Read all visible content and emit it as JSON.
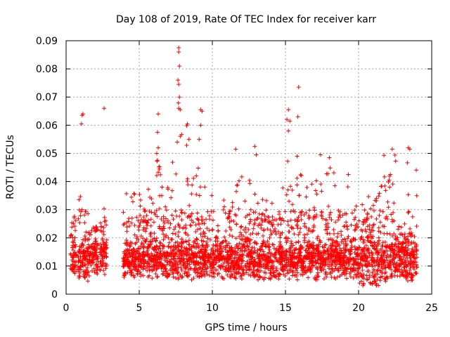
{
  "chart_data": {
    "type": "scatter",
    "title": "Day 108 of 2019, Rate Of TEC Index for receiver karr",
    "xlabel": "GPS time / hours",
    "ylabel": "ROTI / TECUs",
    "xlim": [
      0,
      25
    ],
    "ylim": [
      0,
      0.09
    ],
    "xticks": [
      "0",
      "5",
      "10",
      "15",
      "20",
      "25"
    ],
    "yticks": [
      "0",
      "0.01",
      "0.02",
      "0.03",
      "0.04",
      "0.05",
      "0.06",
      "0.07",
      "0.08",
      "0.09"
    ],
    "grid": true,
    "marker": "+",
    "color": "#ff0000",
    "series": [
      {
        "name": "ROTI",
        "segments": [
          {
            "x": [
              0.3,
              0.7
            ],
            "ylo": 0.007,
            "yhi": 0.028
          },
          {
            "x": [
              0.8,
              1.6
            ],
            "ylo": 0.004,
            "yhi": 0.041
          },
          {
            "x": [
              1.6,
              2.2
            ],
            "ylo": 0.007,
            "yhi": 0.025
          },
          {
            "x": [
              2.3,
              2.8
            ],
            "ylo": 0.006,
            "yhi": 0.033
          },
          {
            "x": [
              3.9,
              5.0
            ],
            "ylo": 0.006,
            "yhi": 0.038
          },
          {
            "x": [
              5.0,
              6.0
            ],
            "ylo": 0.005,
            "yhi": 0.04
          },
          {
            "x": [
              6.0,
              7.5
            ],
            "ylo": 0.006,
            "yhi": 0.052
          },
          {
            "x": [
              7.5,
              8.5
            ],
            "ylo": 0.005,
            "yhi": 0.07
          },
          {
            "x": [
              8.5,
              10.0
            ],
            "ylo": 0.005,
            "yhi": 0.045
          },
          {
            "x": [
              10.0,
              11.5
            ],
            "ylo": 0.005,
            "yhi": 0.04
          },
          {
            "x": [
              11.5,
              13.0
            ],
            "ylo": 0.005,
            "yhi": 0.044
          },
          {
            "x": [
              13.0,
              14.8
            ],
            "ylo": 0.005,
            "yhi": 0.036
          },
          {
            "x": [
              14.8,
              16.5
            ],
            "ylo": 0.005,
            "yhi": 0.048
          },
          {
            "x": [
              16.5,
              18.5
            ],
            "ylo": 0.005,
            "yhi": 0.045
          },
          {
            "x": [
              18.5,
              20.0
            ],
            "ylo": 0.005,
            "yhi": 0.04
          },
          {
            "x": [
              20.0,
              21.5
            ],
            "ylo": 0.003,
            "yhi": 0.036
          },
          {
            "x": [
              21.5,
              22.6
            ],
            "ylo": 0.004,
            "yhi": 0.05
          },
          {
            "x": [
              22.6,
              23.2
            ],
            "ylo": 0.005,
            "yhi": 0.025
          },
          {
            "x": [
              23.2,
              24.0
            ],
            "ylo": 0.004,
            "yhi": 0.05
          }
        ],
        "outliers": [
          [
            1.1,
            0.0635
          ],
          [
            1.15,
            0.064
          ],
          [
            1.05,
            0.0605
          ],
          [
            2.6,
            0.066
          ],
          [
            6.3,
            0.064
          ],
          [
            6.25,
            0.0575
          ],
          [
            6.3,
            0.052
          ],
          [
            6.2,
            0.05
          ],
          [
            7.7,
            0.0875
          ],
          [
            7.7,
            0.086
          ],
          [
            7.75,
            0.081
          ],
          [
            7.65,
            0.076
          ],
          [
            7.7,
            0.0745
          ],
          [
            7.75,
            0.07
          ],
          [
            7.7,
            0.066
          ],
          [
            7.8,
            0.0655
          ],
          [
            7.6,
            0.054
          ],
          [
            8.4,
            0.055
          ],
          [
            9.2,
            0.0655
          ],
          [
            9.3,
            0.065
          ],
          [
            9.2,
            0.06
          ],
          [
            9.1,
            0.055
          ],
          [
            11.6,
            0.0515
          ],
          [
            12.9,
            0.0525
          ],
          [
            13.0,
            0.0495
          ],
          [
            15.2,
            0.0655
          ],
          [
            15.1,
            0.062
          ],
          [
            15.3,
            0.0615
          ],
          [
            15.2,
            0.058
          ],
          [
            15.9,
            0.0735
          ],
          [
            15.85,
            0.063
          ],
          [
            15.8,
            0.049
          ],
          [
            17.4,
            0.0495
          ],
          [
            18.0,
            0.0485
          ],
          [
            19.3,
            0.0425
          ],
          [
            22.3,
            0.0515
          ],
          [
            23.4,
            0.052
          ],
          [
            23.5,
            0.0515
          ]
        ]
      }
    ]
  }
}
